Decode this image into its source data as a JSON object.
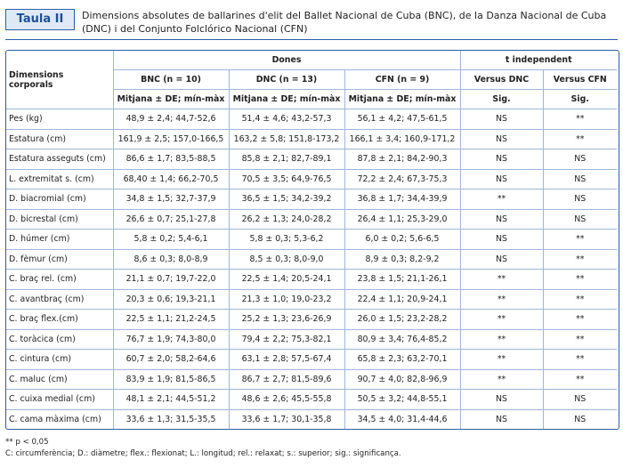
{
  "header": {
    "label": "Taula II",
    "caption": "Dimensions absolutes de ballarines d'elit del Ballet Nacional de Cuba (BNC), de la Danza Nacional de Cuba (DNC) i del Conjunto Folclórico Nacional (CFN)"
  },
  "table": {
    "corner": "Dimensions corporals",
    "group_headers": [
      "Dones",
      "t independent"
    ],
    "columns": [
      "BNC (n = 10)",
      "DNC (n = 13)",
      "CFN (n = 9)",
      "Versus DNC",
      "Versus CFN"
    ],
    "subheaders": [
      "Mitjana ± DE; mín-màx",
      "Mitjana ± DE; mín-màx",
      "Mitjana ± DE; mín-màx",
      "Sig.",
      "Sig."
    ],
    "rows": [
      [
        "Pes (kg)",
        "48,9 ± 2,4; 44,7-52,6",
        "51,4 ± 4,6; 43,2-57,3",
        "56,1 ± 4,2; 47,5-61,5",
        "NS",
        "**"
      ],
      [
        "Estatura (cm)",
        "161,9 ± 2,5; 157,0-166,5",
        "163,2 ± 5,8; 151,8-173,2",
        "166,1 ± 3,4; 160,9-171,2",
        "NS",
        "**"
      ],
      [
        "Estatura asseguts (cm)",
        "86,6 ± 1,7; 83,5-88,5",
        "85,8 ± 2,1; 82,7-89,1",
        "87,8 ± 2,1; 84,2-90,3",
        "NS",
        "NS"
      ],
      [
        "L. extremitat s. (cm)",
        "68,40 ± 1,4; 66,2-70,5",
        "70,5 ± 3,5; 64,9-76,5",
        "72,2 ± 2,4; 67,3-75,3",
        "NS",
        "NS"
      ],
      [
        "D. biacromial (cm)",
        "34,8 ± 1,5; 32,7-37,9",
        "36,5 ± 1,5; 34,2-39,2",
        "36,8 ± 1,7; 34,4-39,9",
        "**",
        "NS"
      ],
      [
        "D. bicrestal (cm)",
        "26,6 ± 0,7; 25,1-27,8",
        "26,2 ± 1,3; 24,0-28,2",
        "26,4 ± 1,1; 25,3-29,0",
        "NS",
        "NS"
      ],
      [
        "D. húmer (cm)",
        "5,8 ± 0,2; 5,4-6,1",
        "5,8 ± 0,3; 5,3-6,2",
        "6,0 ± 0,2; 5,6-6,5",
        "NS",
        "**"
      ],
      [
        "D. fèmur (cm)",
        "8,6 ± 0,3; 8,0-8,9",
        "8,5 ± 0,3; 8,0-9,0",
        "8,9 ± 0,3; 8,2-9,2",
        "NS",
        "**"
      ],
      [
        "C. braç rel. (cm)",
        "21,1 ± 0,7; 19,7-22,0",
        "22,5 ± 1,4; 20,5-24,1",
        "23,8 ± 1,5; 21,1-26,1",
        "**",
        "**"
      ],
      [
        "C. avantbraç (cm)",
        "20,3 ± 0,6; 19,3-21,1",
        "21,3 ± 1,0; 19,0-23,2",
        "22,4 ± 1,1; 20,9-24,1",
        "**",
        "**"
      ],
      [
        "C. braç flex.(cm)",
        "22,5 ± 1,1; 21,2-24,5",
        "25,2 ± 1,3; 23,6-26,9",
        "26,0 ± 1,5; 23,2-28,2",
        "**",
        "**"
      ],
      [
        "C. toràcica (cm)",
        "76,7 ± 1,9; 74,3-80,0",
        "79,4 ± 2,2; 75,3-82,1",
        "80,9 ± 3,4; 76,4-85,2",
        "**",
        "**"
      ],
      [
        "C. cintura (cm)",
        "60,7 ± 2,0; 58,2-64,6",
        "63,1 ± 2,8; 57,5-67,4",
        "65,8 ± 2,3; 63,2-70,1",
        "**",
        "**"
      ],
      [
        "C. maluc (cm)",
        "83,9 ± 1,9; 81,5-86,5",
        "86,7 ± 2,7; 81,5-89,6",
        "90,7 ± 4,0; 82,8-96,9",
        "**",
        "**"
      ],
      [
        "C. cuixa medial (cm)",
        "48,1 ± 2,1; 44,5-51,2",
        "48,6 ± 2,6; 45,5-55,8",
        "50,5 ± 3,2; 44,8-55,1",
        "NS",
        "NS"
      ],
      [
        "C. cama màxima (cm)",
        "33,6 ± 1,3; 31,5-35,5",
        "33,6 ± 1,7; 30,1-35,8",
        "34,5 ± 4,0; 31,4-44,6",
        "NS",
        "NS"
      ]
    ]
  },
  "footnotes": [
    "** p < 0,05",
    "C: circumferència; D.: diàmetre; flex.: flexionat; L.: longitud; rel.: relaxat; s.: superior; sig.: significança."
  ]
}
